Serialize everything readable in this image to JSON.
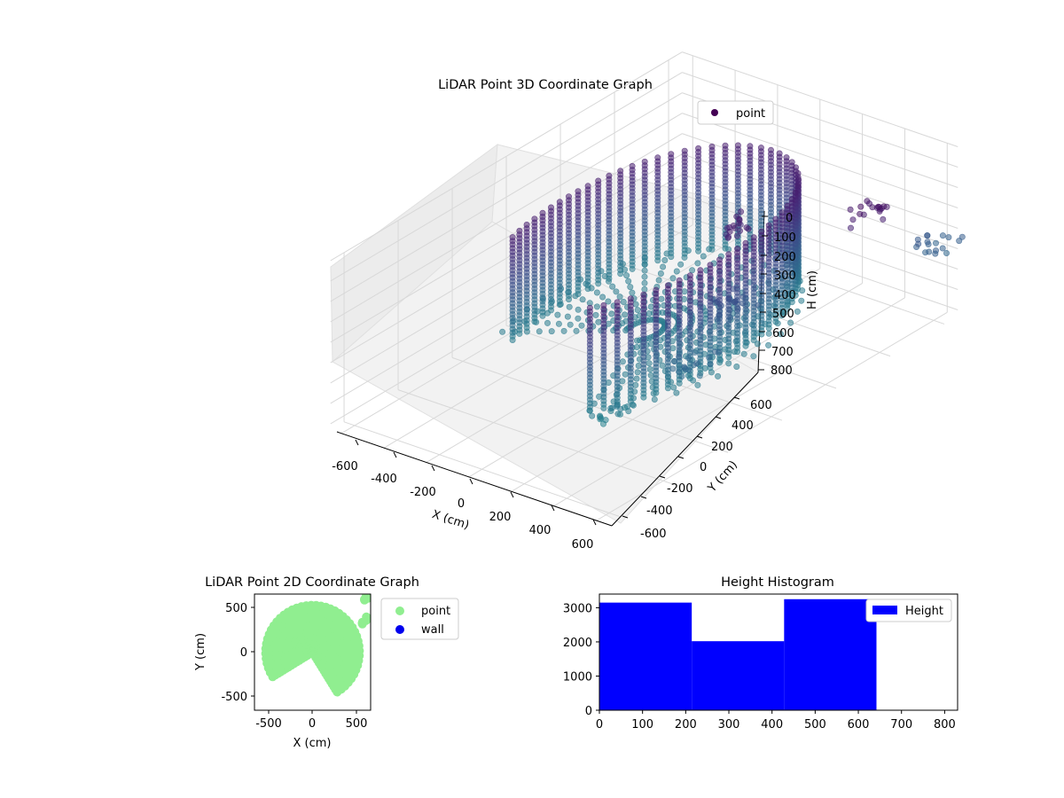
{
  "chart_data": [
    {
      "type": "scatter",
      "projection": "3d",
      "title": "LiDAR Point 3D Coordinate Graph",
      "xlabel": "X (cm)",
      "ylabel": "Y (cm)",
      "zlabel": "H (cm)",
      "xlim": [
        -650,
        650
      ],
      "ylim": [
        -650,
        650
      ],
      "zlim": [
        0,
        830
      ],
      "zaxis_inverted": true,
      "xticks": [
        "-600",
        "-400",
        "-200",
        "0",
        "200",
        "400",
        "600"
      ],
      "yticks": [
        "-600",
        "-400",
        "-200",
        "0",
        "200",
        "400",
        "600"
      ],
      "zticks": [
        "0",
        "100",
        "200",
        "300",
        "400",
        "500",
        "600",
        "700",
        "800"
      ],
      "colormap": "viridis",
      "grid": true,
      "legend": {
        "placement": "top-right",
        "entries": [
          {
            "label": "point",
            "color": "#440154"
          }
        ]
      },
      "series": [
        {
          "name": "point",
          "shape": "cylindrical-wall",
          "radius": 480,
          "angle_range_deg": [
            -150,
            120
          ],
          "h_range": [
            120,
            640
          ],
          "extra_clusters": [
            {
              "x": 250,
              "y": 150,
              "h": 150
            },
            {
              "x": 350,
              "y": 50,
              "h": 400
            },
            {
              "x": 450,
              "y": -150,
              "h": 500
            },
            {
              "x": 600,
              "y": 350,
              "h": 100
            },
            {
              "x": 620,
              "y": 600,
              "h": 450
            },
            {
              "x": 300,
              "y": -350,
              "h": 640
            }
          ]
        }
      ]
    },
    {
      "type": "scatter",
      "title": "LiDAR Point 2D Coordinate Graph",
      "xlabel": "X (cm)",
      "ylabel": "Y (cm)",
      "xlim": [
        -650,
        650
      ],
      "ylim": [
        -650,
        650
      ],
      "xticks": [
        "-500",
        "0",
        "500"
      ],
      "yticks": [
        "-500",
        "0",
        "500"
      ],
      "legend": {
        "placement": "outside-right",
        "entries": [
          {
            "label": "point",
            "color": "#90ee90"
          },
          {
            "label": "wall",
            "color": "#0000ee"
          }
        ]
      },
      "series": [
        {
          "name": "point",
          "color": "#90ee90",
          "shape": "disc",
          "radius": 540,
          "angle_range_deg": [
            -150,
            120
          ]
        },
        {
          "name": "wall",
          "color": "#0000ee",
          "points": []
        }
      ]
    },
    {
      "type": "bar",
      "subtype": "histogram",
      "title": "Height Histogram",
      "xlim": [
        0,
        830
      ],
      "ylim": [
        0,
        3400
      ],
      "xticks": [
        "0",
        "100",
        "200",
        "300",
        "400",
        "500",
        "600",
        "700",
        "800"
      ],
      "yticks": [
        "0",
        "1000",
        "2000",
        "3000"
      ],
      "bins": [
        [
          0,
          214
        ],
        [
          214,
          428
        ],
        [
          428,
          642
        ]
      ],
      "values": [
        3150,
        2020,
        3250
      ],
      "color": "#0000ff",
      "legend": {
        "placement": "top-right",
        "entries": [
          {
            "label": "Height",
            "color": "#0000ff"
          }
        ]
      }
    }
  ]
}
